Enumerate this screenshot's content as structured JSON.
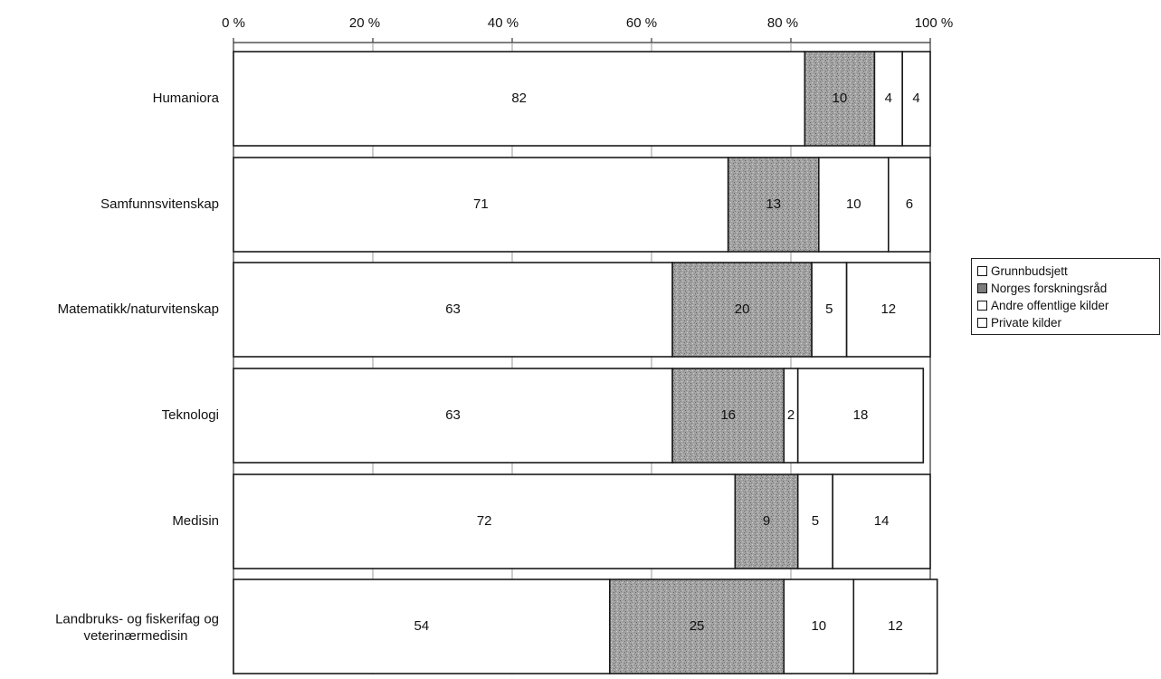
{
  "chart_data": {
    "type": "bar",
    "orientation": "horizontal",
    "stacked": true,
    "categories": [
      "Humaniora",
      "Samfunnsvitenskap",
      "Matematikk/naturvitenskap",
      "Teknologi",
      "Medisin",
      "Landbruks- og fiskerifag og veterinærmedisin"
    ],
    "series": [
      {
        "name": "Grunnbudsjett",
        "values": [
          82,
          71,
          63,
          63,
          72,
          54
        ],
        "color": "#ffffff"
      },
      {
        "name": "Norges forskningsråd",
        "values": [
          10,
          13,
          20,
          16,
          9,
          25
        ],
        "color": "#a6a6a6"
      },
      {
        "name": "Andre offentlige kilder",
        "values": [
          4,
          10,
          5,
          2,
          5,
          10
        ],
        "color": "#ffffff"
      },
      {
        "name": "Private kilder",
        "values": [
          4,
          6,
          12,
          18,
          14,
          12
        ],
        "color": "#ffffff"
      }
    ],
    "xlim": [
      0,
      100
    ],
    "x_ticks": [
      "0 %",
      "20 %",
      "40 %",
      "60 %",
      "80 %",
      "100 %"
    ],
    "x_axis_position": "top",
    "legend_position": "right",
    "grid": true,
    "title": "",
    "xlabel": "",
    "ylabel": ""
  }
}
